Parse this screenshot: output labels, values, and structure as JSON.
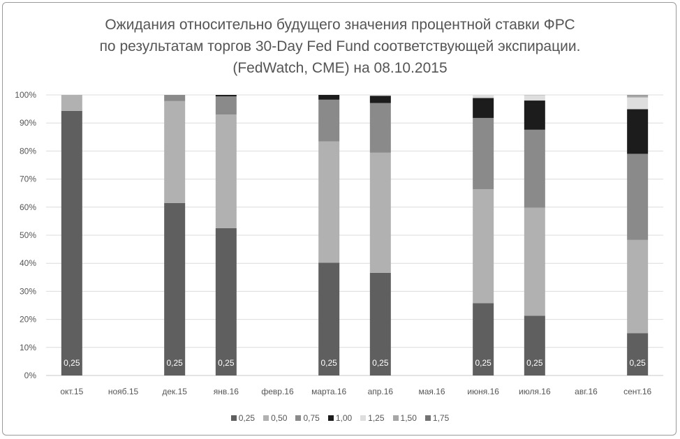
{
  "chart_data": {
    "type": "bar",
    "stacked": true,
    "title_lines": [
      "Ожидания относительно будущего значения процентной ставки ФРС",
      "по результатам торгов 30-Day Fed Fund соответствующей экспирации.",
      "(FedWatch, CME) на 08.10.2015"
    ],
    "categories": [
      "окт.15",
      "нояб.15",
      "дек.15",
      "янв.16",
      "февр.16",
      "марта.16",
      "апр.16",
      "мая.16",
      "июня.16",
      "июля.16",
      "авг.16",
      "сент.16"
    ],
    "y_ticks": [
      "0%",
      "10%",
      "20%",
      "30%",
      "40%",
      "50%",
      "60%",
      "70%",
      "80%",
      "90%",
      "100%"
    ],
    "ylim": [
      0,
      100
    ],
    "grid": true,
    "legend_position": "bottom",
    "data_label_text": "0,25",
    "data_label_categories": [
      0,
      2,
      3,
      5,
      6,
      8,
      9,
      11
    ],
    "series": [
      {
        "name": "0,25",
        "color": "#5f5f5f",
        "values": [
          94.3,
          null,
          61.5,
          52.5,
          null,
          40.2,
          36.6,
          null,
          25.8,
          21.3,
          null,
          15.1
        ]
      },
      {
        "name": "0,50",
        "color": "#b1b1b1",
        "values": [
          5.7,
          null,
          36.3,
          40.5,
          null,
          43.2,
          42.8,
          null,
          40.6,
          38.5,
          null,
          33.2
        ]
      },
      {
        "name": "0,75",
        "color": "#8a8a8a",
        "values": [
          0,
          null,
          2.2,
          6.5,
          null,
          14.9,
          17.7,
          null,
          25.4,
          27.8,
          null,
          30.7
        ]
      },
      {
        "name": "1,00",
        "color": "#1c1c1c",
        "values": [
          0,
          null,
          0,
          0.5,
          null,
          1.7,
          2.6,
          null,
          7.1,
          10.4,
          null,
          15.9
        ]
      },
      {
        "name": "1,25",
        "color": "#dedede",
        "values": [
          0,
          null,
          0,
          0,
          null,
          0,
          0.3,
          null,
          1.1,
          1.9,
          null,
          4.2
        ]
      },
      {
        "name": "1,50",
        "color": "#a6a6a6",
        "values": [
          0,
          null,
          0,
          0,
          null,
          0,
          0,
          null,
          0,
          0.1,
          null,
          0.8
        ]
      },
      {
        "name": "1,75",
        "color": "#737373",
        "values": [
          0,
          null,
          0,
          0,
          null,
          0,
          0,
          null,
          0,
          0,
          null,
          0.1
        ]
      }
    ]
  }
}
